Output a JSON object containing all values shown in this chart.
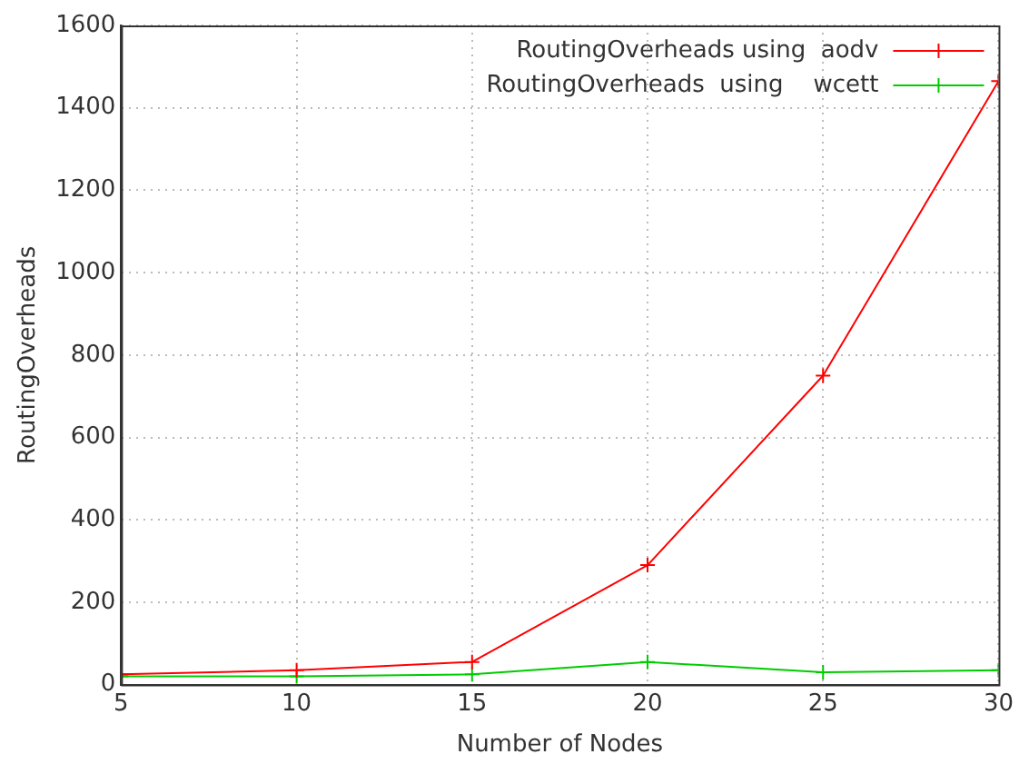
{
  "chart_data": {
    "type": "line",
    "xlabel": "Number of Nodes",
    "ylabel": "RoutingOverheads",
    "x": [
      5,
      10,
      15,
      20,
      25,
      30
    ],
    "series": [
      {
        "name": "RoutingOverheads using  aodv",
        "color": "#ff0000",
        "values": [
          25,
          35,
          55,
          290,
          750,
          1465
        ]
      },
      {
        "name": "RoutingOverheads  using    wcett",
        "color": "#00cc00",
        "values": [
          20,
          20,
          25,
          55,
          30,
          35
        ]
      }
    ],
    "xlim": [
      5,
      30
    ],
    "xticks": [
      5,
      10,
      15,
      20,
      25,
      30
    ],
    "ylim": [
      0,
      1600
    ],
    "yticks": [
      0,
      200,
      400,
      600,
      800,
      1000,
      1200,
      1400,
      1600
    ],
    "grid": true,
    "legend": "top right",
    "marker": "cross",
    "line_style": "solid"
  }
}
